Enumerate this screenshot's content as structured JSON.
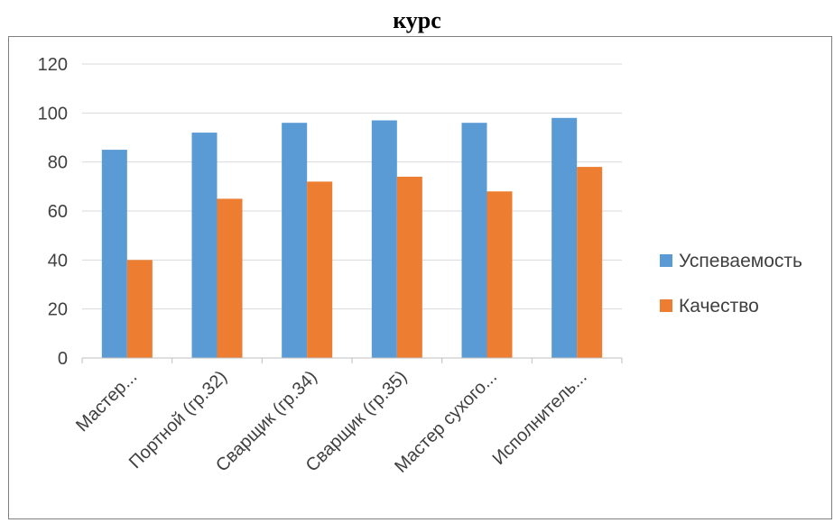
{
  "title": "курс",
  "chart_data": {
    "type": "bar",
    "title": "курс",
    "categories": [
      "Мастер...",
      "Портной (гр.32)",
      "Сварщик  (гр.34)",
      "Сварщик (гр.35)",
      "Мастер сухого...",
      "Исполнитель..."
    ],
    "series": [
      {
        "name": "Успеваемость",
        "color": "#5b9bd5",
        "values": [
          85,
          92,
          96,
          97,
          96,
          98
        ]
      },
      {
        "name": "Качество",
        "color": "#ed7d31",
        "values": [
          40,
          65,
          72,
          74,
          68,
          78
        ]
      }
    ],
    "yticks": [
      "0",
      "20",
      "40",
      "60",
      "80",
      "100",
      "120"
    ],
    "ylim": [
      0,
      120
    ],
    "grid": true,
    "legend_position": "right"
  }
}
